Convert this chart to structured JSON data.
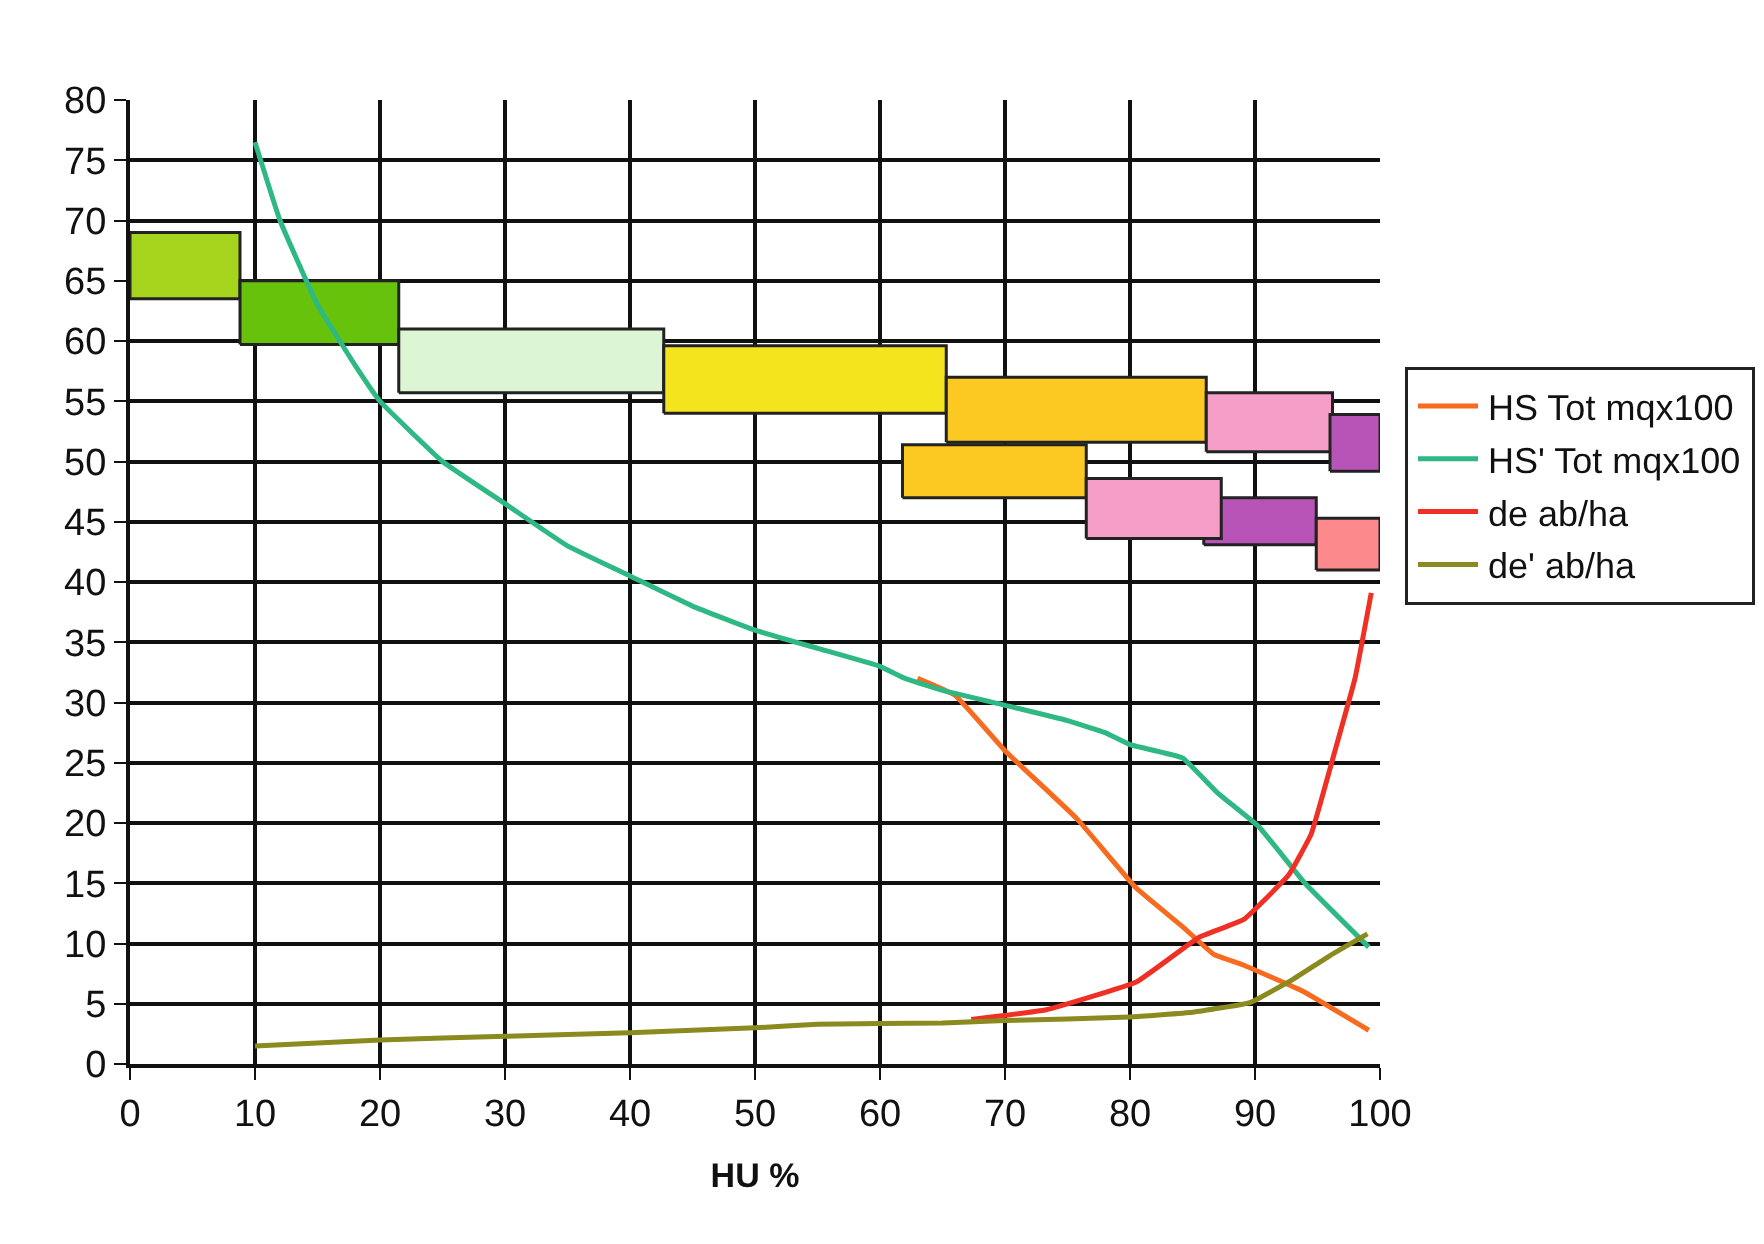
{
  "chart_data": {
    "type": "line",
    "xlabel": "HU %",
    "xlim": [
      0,
      100
    ],
    "xticks": [
      0,
      10,
      20,
      30,
      40,
      50,
      60,
      70,
      80,
      90,
      100
    ],
    "ylim": [
      0,
      80
    ],
    "yticks": [
      0,
      5,
      10,
      15,
      20,
      25,
      30,
      35,
      40,
      45,
      50,
      55,
      60,
      65,
      70,
      75,
      80
    ],
    "grid": true,
    "legend": "right",
    "marker": "none",
    "line_style": "solid",
    "series": [
      {
        "type": "area",
        "color": "#a6d31c",
        "x": [
          0,
          0,
          8.8,
          8.8,
          0
        ],
        "values": [
          63.5,
          69,
          69,
          63.5,
          63.5
        ]
      },
      {
        "type": "area",
        "color": "#66c20a",
        "x": [
          8.8,
          8.8,
          21.5,
          21.5,
          8.8
        ],
        "values": [
          59.7,
          65,
          65,
          59.7,
          59.7
        ]
      },
      {
        "type": "area",
        "color": "#dcf5d4",
        "x": [
          21.5,
          21.5,
          42.7,
          42.7,
          21.5
        ],
        "values": [
          55.7,
          61,
          61,
          55.7,
          55.7
        ]
      },
      {
        "type": "area",
        "color": "#f4e41e",
        "x": [
          42.7,
          42.7,
          65.3,
          65.3,
          42.7
        ],
        "values": [
          54,
          59.6,
          59.6,
          54,
          54
        ]
      },
      {
        "type": "area",
        "color": "#fcc822",
        "x": [
          65.3,
          65.3,
          86.1,
          86.1,
          65.3
        ],
        "values": [
          51.6,
          57,
          57,
          51.6,
          51.6
        ]
      },
      {
        "type": "area",
        "color": "#f49ec8",
        "x": [
          86.1,
          86.1,
          96.2,
          96.2,
          86.1
        ],
        "values": [
          50.8,
          55.7,
          55.7,
          50.8,
          50.8
        ]
      },
      {
        "type": "area",
        "color": "#b854b8",
        "x": [
          96,
          96,
          100,
          100,
          96
        ],
        "values": [
          49.2,
          53.9,
          53.9,
          49.2,
          49.2
        ]
      },
      {
        "type": "area",
        "color": "#fcc822",
        "x": [
          61.8,
          61.8,
          76.5,
          76.5,
          61.8
        ],
        "values": [
          47,
          51.4,
          51.4,
          47,
          47
        ]
      },
      {
        "type": "area",
        "color": "#b854b8",
        "x": [
          85.9,
          85.9,
          94.9,
          94.9,
          85.9
        ],
        "values": [
          43.1,
          47,
          47,
          43.1,
          43.1
        ]
      },
      {
        "type": "area",
        "color": "#f49ec8",
        "x": [
          76.5,
          76.5,
          87.3,
          87.3,
          76.5
        ],
        "values": [
          43.6,
          48.6,
          48.6,
          43.6,
          43.6
        ]
      },
      {
        "type": "area",
        "color": "#fc8a8c",
        "x": [
          94.9,
          94.9,
          100,
          100,
          94.9
        ],
        "values": [
          41,
          45.3,
          45.3,
          41,
          41
        ]
      },
      {
        "name": "HS Tot mqx100",
        "color": "#f86a1e",
        "x": [
          63,
          66,
          70,
          75.8,
          80.5,
          84.2,
          86.7,
          89.1,
          93.9,
          99.1
        ],
        "values": [
          32,
          30.6,
          26,
          20.3,
          14.6,
          11.4,
          9.1,
          8.2,
          6,
          2.8
        ]
      },
      {
        "name": "HS' Tot mqx100",
        "color": "#2eb884",
        "x": [
          10,
          12,
          15,
          18,
          20,
          25,
          30,
          35,
          40,
          45,
          50,
          55,
          60,
          62,
          65,
          70.3,
          75,
          78,
          80,
          84.2,
          87,
          90.3,
          94,
          99.1
        ],
        "values": [
          76.5,
          70,
          63,
          58,
          55,
          50,
          46.5,
          43,
          40.5,
          38,
          36,
          34.5,
          33,
          32,
          31,
          29.7,
          28.5,
          27.5,
          26.5,
          25.4,
          22.5,
          19.7,
          15,
          9.7
        ]
      },
      {
        "name": "de ab/ha",
        "color": "#ee3124",
        "x": [
          67.3,
          73.3,
          80.5,
          85.5,
          89.1,
          92.7,
          94.5,
          96.4,
          98,
          99.3
        ],
        "values": [
          3.7,
          4.5,
          6.8,
          10.5,
          12,
          15.7,
          19.1,
          26,
          32,
          39.1
        ]
      },
      {
        "name": "de' ab/ha",
        "color": "#8a8a1e",
        "x": [
          10,
          20,
          30,
          40,
          50,
          55,
          65,
          70,
          80,
          85,
          89.6,
          93,
          96,
          99
        ],
        "values": [
          1.5,
          2,
          2.3,
          2.6,
          3,
          3.3,
          3.4,
          3.6,
          3.9,
          4.3,
          5.1,
          7,
          9,
          10.8
        ]
      }
    ]
  }
}
